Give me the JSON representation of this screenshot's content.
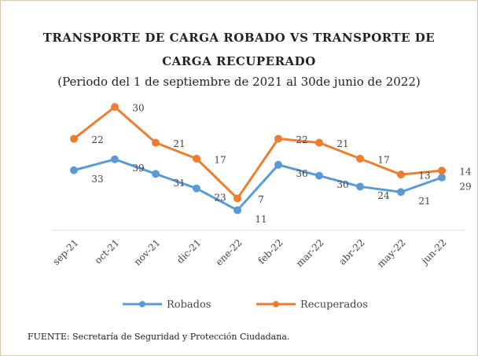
{
  "chart_data": {
    "type": "line",
    "title": "TRANSPORTE DE CARGA ROBADO VS TRANSPORTE DE CARGA RECUPERADO",
    "subtitle": "(Periodo del 1 de septiembre de 2021 al 30de junio de 2022)",
    "source": "FUENTE: Secretaría de Seguridad y Protección Ciudadana.",
    "categories": [
      "sep-21",
      "oct-21",
      "nov-21",
      "dic-21",
      "ene-22",
      "feb-22",
      "mar-22",
      "abr-22",
      "may-22",
      "jun-22"
    ],
    "series": [
      {
        "name": "Robados",
        "color": "#5b9bd5",
        "values": [
          33,
          39,
          31,
          23,
          11,
          36,
          30,
          24,
          21,
          29
        ]
      },
      {
        "name": "Recuperados",
        "color": "#ed7d31",
        "axis": "y2",
        "values": [
          22,
          30,
          21,
          17,
          7,
          22,
          21,
          17,
          13,
          14
        ]
      }
    ],
    "ylim": [
      0,
      70
    ],
    "y2lim": [
      -1,
      31
    ],
    "legend": "bottom"
  }
}
